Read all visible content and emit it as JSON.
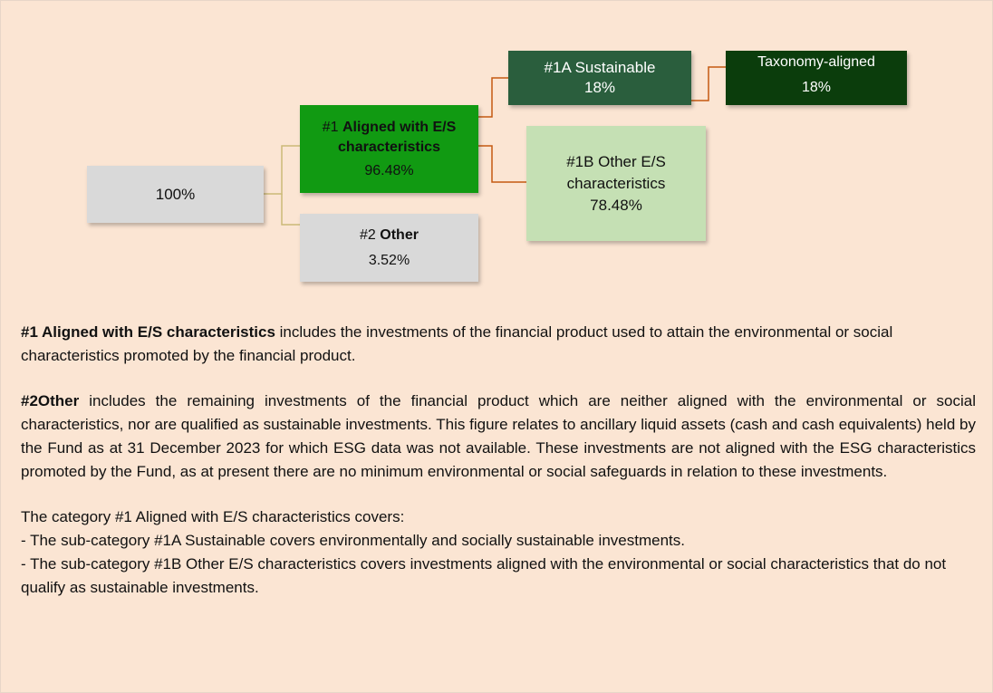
{
  "nodes": {
    "root": {
      "value": "100%"
    },
    "aligned": {
      "prefix": "#1",
      "label": "Aligned with E/S characteristics",
      "value": "96.48%"
    },
    "other": {
      "prefix": "#2",
      "label": "Other",
      "value": "3.52%"
    },
    "sustainable": {
      "label": "#1A Sustainable",
      "value": "18%"
    },
    "taxonomy": {
      "label": "Taxonomy-aligned",
      "value": "18%"
    },
    "other_es": {
      "label": "#1B Other E/S characteristics",
      "value": "78.48%"
    }
  },
  "paragraphs": [
    {
      "bold": "#1 Aligned with E/S characteristics",
      "text": " includes the investments of the financial product used to attain the environmental or social characteristics promoted by the financial product."
    },
    {
      "bold": "#2Other",
      "text": " includes the remaining investments of the financial product which are neither aligned with the environmental or social characteristics, nor are qualified as sustainable investments. This figure relates to ancillary liquid assets (cash and cash equivalents) held by the Fund as at 31 December 2023 for which ESG data was not available. These investments are not aligned with the ESG characteristics promoted by the Fund, as at present there are no minimum environmental or social safeguards in relation to these investments."
    },
    {
      "lines": [
        "The category #1 Aligned with E/S characteristics covers:",
        "- The sub-category #1A Sustainable covers environmentally and socially sustainable investments.",
        "- The sub-category #1B Other E/S characteristics covers investments aligned with the environmental or social characteristics that do not qualify as sustainable investments."
      ]
    }
  ]
}
